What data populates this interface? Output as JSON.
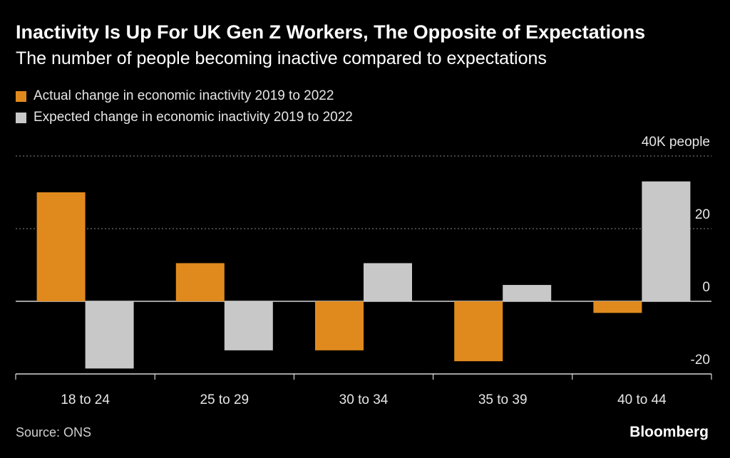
{
  "chart_data": {
    "type": "bar",
    "title": "Inactivity Is Up For UK Gen Z Workers, The Opposite of Expectations",
    "subtitle": "The number of people becoming inactive compared to expectations",
    "categories": [
      "18 to 24",
      "25 to 29",
      "30 to 34",
      "35 to 39",
      "40 to 44"
    ],
    "series": [
      {
        "name": "Actual change in economic inactivity 2019 to 2022",
        "color": "#e08a1e",
        "values": [
          30,
          10.5,
          -13.5,
          -16.5,
          -3.2
        ]
      },
      {
        "name": "Expected change in economic inactivity 2019 to 2022",
        "color": "#c8c8c8",
        "values": [
          -18.5,
          -13.5,
          10.5,
          4.5,
          33
        ]
      }
    ],
    "y_unit_label": "40K people",
    "y_ticks": [
      {
        "value": 40,
        "label": "40K people"
      },
      {
        "value": 20,
        "label": "20"
      },
      {
        "value": 0,
        "label": "0"
      },
      {
        "value": -20,
        "label": "-20"
      }
    ],
    "ylim": [
      -20,
      40
    ],
    "xlabel": "",
    "ylabel": "",
    "legend_position": "top-left"
  },
  "footer": {
    "source": "Source: ONS",
    "brand": "Bloomberg"
  }
}
